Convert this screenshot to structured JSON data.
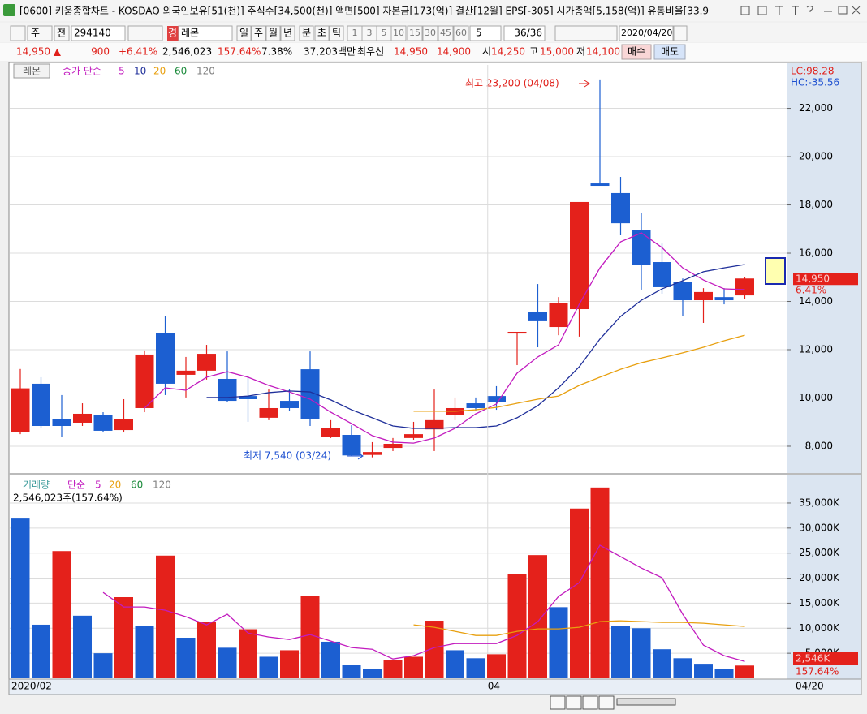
{
  "window": {
    "title": "[0600] 키움종합차트 - KOSDAQ 외국인보유[51(천)] 주식수[34,500(천)] 액면[500] 자본금[173(억)] 결산[12월] EPS[-305] 시가총액[5,158(억)] 유통비율[33.9"
  },
  "toolbar": {
    "period_type": "주",
    "prev": "전",
    "code": "294140",
    "mode": "경",
    "name": "레몬",
    "periods": [
      "일",
      "주",
      "월",
      "년",
      "분",
      "초",
      "틱"
    ],
    "minutes": [
      "1",
      "3",
      "5",
      "10",
      "15",
      "30",
      "45",
      "60"
    ],
    "interval": "5",
    "count": "36/36",
    "date": "2020/04/20"
  },
  "quote": {
    "price": "14,950 ▲",
    "change": "900",
    "rate": "+6.41%",
    "volume": "2,546,023",
    "volume_ratio": "157.64%",
    "turnover": "7.38%",
    "amount": "37,203백만",
    "best_label": "최우선",
    "best_ask": "14,950",
    "best_bid": "14,900",
    "open_label": "시",
    "open": "14,250",
    "high_label": "고",
    "high": "15,000",
    "low_label": "저",
    "low": "14,100",
    "buy": "매수",
    "sell": "매도"
  },
  "chart_data": [
    {
      "type": "candlestick",
      "title": "레몬",
      "subtitle": "종가 단순",
      "up_color": "#e4211b",
      "down_color": "#1c5fd1",
      "open": [
        8600,
        10590,
        9140,
        8975,
        9280,
        8670,
        9580,
        12700,
        10960,
        11130,
        10790,
        10080,
        9180,
        9880,
        11190,
        8400,
        8470,
        7640,
        7930,
        8340,
        8700,
        9280,
        9780,
        10080,
        12670,
        13550,
        12940,
        13680,
        18890,
        18490,
        16970,
        15630,
        14820,
        14050,
        14180,
        14250
      ],
      "high": [
        11200,
        10860,
        10120,
        9780,
        9410,
        9950,
        11970,
        13380,
        11700,
        12200,
        11930,
        10920,
        10350,
        10350,
        11930,
        9080,
        8870,
        8170,
        8340,
        9010,
        10350,
        10020,
        10020,
        10490,
        12740,
        14720,
        14180,
        18120,
        23200,
        19160,
        17650,
        16400,
        14950,
        14550,
        14550,
        15000
      ],
      "low": [
        8500,
        8770,
        8400,
        8840,
        8570,
        8570,
        9410,
        10120,
        10020,
        10760,
        9815,
        9010,
        9080,
        9450,
        8840,
        8340,
        7600,
        7540,
        7800,
        8270,
        7800,
        9080,
        9480,
        9510,
        11360,
        12100,
        12600,
        12540,
        18790,
        16740,
        14490,
        14320,
        13380,
        13110,
        13880,
        14100
      ],
      "close": [
        10400,
        8840,
        8840,
        9345,
        8640,
        9140,
        11800,
        10590,
        11130,
        11830,
        9880,
        9950,
        9580,
        9580,
        9110,
        8770,
        7620,
        7760,
        8100,
        8500,
        9080,
        9580,
        9580,
        9815,
        12740,
        13180,
        13950,
        18120,
        18790,
        17240,
        15530,
        14590,
        14050,
        14390,
        14050,
        14950
      ],
      "series": [
        {
          "name": "5",
          "color": "#c21cbf",
          "values": [
            null,
            null,
            null,
            null,
            null,
            null,
            9580,
            10420,
            10320,
            10860,
            11090,
            10860,
            10520,
            10250,
            9950,
            9410,
            8940,
            8440,
            8170,
            8130,
            8340,
            8740,
            9340,
            9750,
            11030,
            11700,
            12200,
            13880,
            15390,
            16470,
            16840,
            16230,
            15390,
            14890,
            14520,
            14490
          ]
        },
        {
          "name": "10",
          "color": "#1f2f9a",
          "values": [
            null,
            null,
            null,
            null,
            null,
            null,
            null,
            null,
            null,
            10020,
            10020,
            10080,
            10220,
            10290,
            10250,
            9920,
            9510,
            9180,
            8840,
            8740,
            8740,
            8770,
            8770,
            8840,
            9180,
            9680,
            10420,
            11290,
            12440,
            13380,
            14050,
            14520,
            14860,
            15230,
            15390,
            15530
          ]
        },
        {
          "name": "20",
          "color": "#e8a010",
          "values": [
            null,
            null,
            null,
            null,
            null,
            null,
            null,
            null,
            null,
            null,
            null,
            null,
            null,
            null,
            null,
            null,
            null,
            null,
            null,
            9450,
            9450,
            9450,
            9510,
            9610,
            9780,
            9950,
            10080,
            10520,
            10860,
            11190,
            11460,
            11660,
            11870,
            12100,
            12370,
            12600
          ]
        },
        {
          "name": "60",
          "color": "#1a8a3a",
          "values": [
            null,
            null,
            null,
            null,
            null,
            null,
            null,
            null,
            null,
            null,
            null,
            null,
            null,
            null,
            null,
            null,
            null,
            null,
            null,
            null,
            null,
            null,
            null,
            null,
            null,
            null,
            null,
            null,
            null,
            null,
            null,
            null,
            null,
            null,
            null,
            null
          ]
        },
        {
          "name": "120",
          "color": "#808080",
          "values": [
            null,
            null,
            null,
            null,
            null,
            null,
            null,
            null,
            null,
            null,
            null,
            null,
            null,
            null,
            null,
            null,
            null,
            null,
            null,
            null,
            null,
            null,
            null,
            null,
            null,
            null,
            null,
            null,
            null,
            null,
            null,
            null,
            null,
            null,
            null,
            null
          ]
        }
      ],
      "ylim": [
        6890,
        23800
      ],
      "yticks": [
        {
          "value": 8000,
          "label": "8,000"
        },
        {
          "value": 10000,
          "label": "10,000"
        },
        {
          "value": 12000,
          "label": "12,000"
        },
        {
          "value": 14000,
          "label": "14,000"
        },
        {
          "value": 16000,
          "label": "16,000"
        },
        {
          "value": 18000,
          "label": "18,000"
        },
        {
          "value": 20000,
          "label": "20,000"
        },
        {
          "value": 22000,
          "label": "22,000"
        }
      ],
      "grid": true,
      "annotations": {
        "lc": "LC:98.28",
        "hc": "HC:-35.56",
        "max": "최고 23,200 (04/08)",
        "min": "최저 7,540 (03/24)",
        "last_price": "14,950",
        "last_rate": "6.41%"
      }
    },
    {
      "type": "bar",
      "title": "거래량",
      "subtitle": "단순",
      "info": "2,546,023주(157.64%)",
      "categories": [
        "2020/02",
        null,
        null,
        null,
        null,
        null,
        null,
        null,
        null,
        null,
        null,
        null,
        null,
        null,
        null,
        null,
        null,
        null,
        null,
        null,
        null,
        null,
        null,
        "04",
        null,
        null,
        null,
        null,
        null,
        null,
        null,
        null,
        null,
        null,
        null,
        null
      ],
      "x_end_label": "04/20",
      "values": [
        31900,
        10700,
        25400,
        12500,
        5000,
        16200,
        10400,
        24500,
        8100,
        11300,
        6100,
        9800,
        4300,
        5600,
        16500,
        7300,
        2700,
        1900,
        3700,
        4300,
        11500,
        5600,
        4000,
        4800,
        20900,
        24600,
        14200,
        33900,
        38100,
        10500,
        10000,
        5800,
        4000,
        2900,
        1800,
        2546
      ],
      "bar_colors": [
        "#1c5fd1",
        "#1c5fd1",
        "#e4211b",
        "#1c5fd1",
        "#1c5fd1",
        "#e4211b",
        "#1c5fd1",
        "#e4211b",
        "#1c5fd1",
        "#e4211b",
        "#1c5fd1",
        "#e4211b",
        "#1c5fd1",
        "#e4211b",
        "#e4211b",
        "#1c5fd1",
        "#1c5fd1",
        "#1c5fd1",
        "#e4211b",
        "#e4211b",
        "#e4211b",
        "#1c5fd1",
        "#1c5fd1",
        "#e4211b",
        "#e4211b",
        "#e4211b",
        "#1c5fd1",
        "#e4211b",
        "#e4211b",
        "#1c5fd1",
        "#1c5fd1",
        "#1c5fd1",
        "#1c5fd1",
        "#1c5fd1",
        "#1c5fd1",
        "#e4211b"
      ],
      "series": [
        {
          "name": "5",
          "color": "#c21cbf",
          "values": [
            null,
            null,
            null,
            null,
            17150,
            14240,
            14240,
            13590,
            12300,
            10670,
            12800,
            9040,
            8240,
            7750,
            8720,
            7430,
            6130,
            5800,
            3860,
            4510,
            6130,
            6940,
            6940,
            6940,
            8560,
            11320,
            16340,
            19100,
            26560,
            24290,
            22020,
            20080,
            12800,
            6620,
            4510,
            3370
          ]
        },
        {
          "name": "20",
          "color": "#e8a010",
          "values": [
            null,
            null,
            null,
            null,
            null,
            null,
            null,
            null,
            null,
            null,
            null,
            null,
            null,
            null,
            null,
            null,
            null,
            null,
            null,
            10670,
            10180,
            9370,
            8560,
            8560,
            9370,
            9860,
            9860,
            10180,
            11320,
            11480,
            11320,
            11160,
            11160,
            11000,
            10670,
            10350
          ]
        },
        {
          "name": "60",
          "color": "#1a8a3a",
          "values": [
            null,
            null,
            null,
            null,
            null,
            null,
            null,
            null,
            null,
            null,
            null,
            null,
            null,
            null,
            null,
            null,
            null,
            null,
            null,
            null,
            null,
            null,
            null,
            null,
            null,
            null,
            null,
            null,
            null,
            null,
            null,
            null,
            null,
            null,
            null,
            null
          ]
        },
        {
          "name": "120",
          "color": "#808080",
          "values": [
            null,
            null,
            null,
            null,
            null,
            null,
            null,
            null,
            null,
            null,
            null,
            null,
            null,
            null,
            null,
            null,
            null,
            null,
            null,
            null,
            null,
            null,
            null,
            null,
            null,
            null,
            null,
            null,
            null,
            null,
            null,
            null,
            null,
            null,
            null,
            null
          ]
        }
      ],
      "ylim": [
        0,
        40180
      ],
      "yticks": [
        {
          "value": 5000,
          "label": "5,000K"
        },
        {
          "value": 10000,
          "label": "10,000K"
        },
        {
          "value": 15000,
          "label": "15,000K"
        },
        {
          "value": 20000,
          "label": "20,000K"
        },
        {
          "value": 25000,
          "label": "25,000K"
        },
        {
          "value": 30000,
          "label": "30,000K"
        },
        {
          "value": 35000,
          "label": "35,000K"
        }
      ],
      "grid": true,
      "annotations": {
        "last_volume": "2,546K",
        "last_rate": "157.64%"
      }
    }
  ]
}
